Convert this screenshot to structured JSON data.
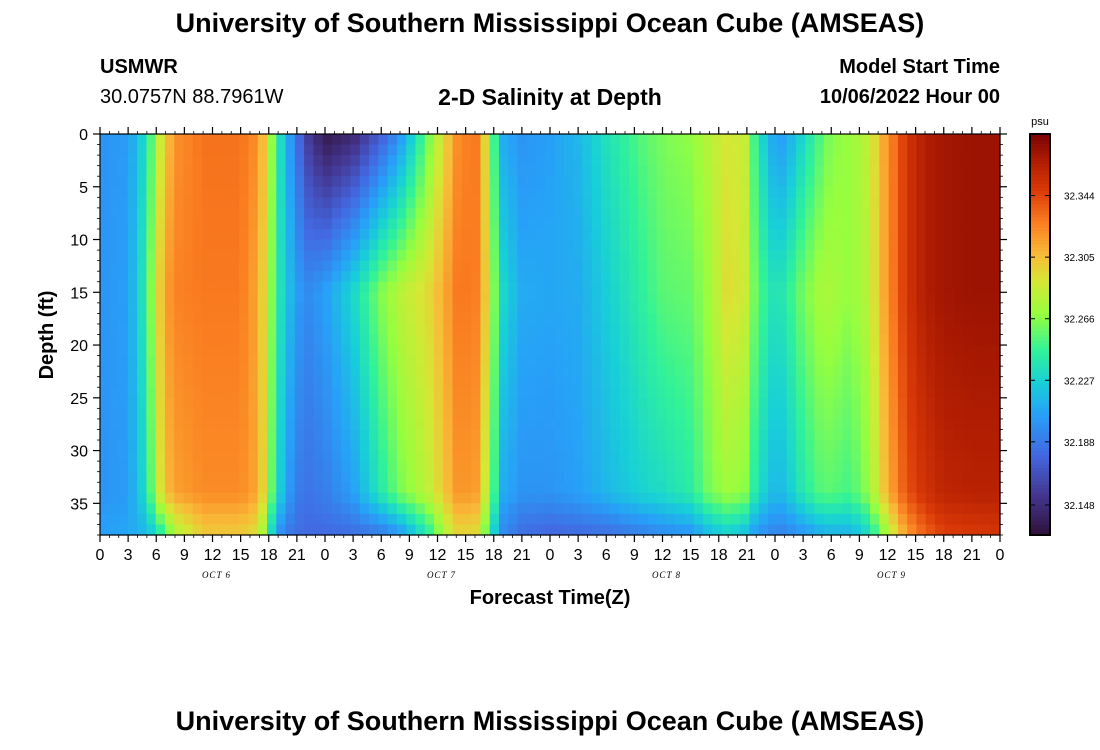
{
  "header": {
    "title": "University of Southern Mississippi Ocean Cube (AMSEAS)",
    "station_name": "USMWR",
    "station_coords": "30.0757N  88.7961W",
    "chart_title": "2-D Salinity at Depth",
    "model_start_label": "Model Start Time",
    "model_start_value": "10/06/2022 Hour 00"
  },
  "footer": {
    "title": "University of Southern Mississippi Ocean Cube (AMSEAS)"
  },
  "chart_data": {
    "type": "heatmap",
    "title": "2-D Salinity at Depth",
    "xlabel": "Forecast Time(Z)",
    "ylabel": "Depth (ft)",
    "x_unit": "hours since model start",
    "x_range": [
      0,
      96
    ],
    "y_range": [
      0,
      38
    ],
    "y_inverted": true,
    "x_tick_labels": [
      "0",
      "3",
      "6",
      "9",
      "12",
      "15",
      "18",
      "21",
      "0",
      "3",
      "6",
      "9",
      "12",
      "15",
      "18",
      "21",
      "0",
      "3",
      "6",
      "9",
      "12",
      "15",
      "18",
      "21",
      "0",
      "3",
      "6",
      "9",
      "12",
      "15",
      "18",
      "21",
      "0"
    ],
    "y_ticks": [
      0,
      5,
      10,
      15,
      20,
      25,
      30,
      35
    ],
    "date_labels": [
      {
        "label": "OCT 6",
        "hour": 12
      },
      {
        "label": "OCT 7",
        "hour": 36
      },
      {
        "label": "OCT 8",
        "hour": 60
      },
      {
        "label": "OCT 9",
        "hour": 84
      }
    ],
    "colorbar": {
      "unit": "psu",
      "range": [
        32.129,
        32.383
      ],
      "ticks": [
        32.148,
        32.188,
        32.227,
        32.266,
        32.305,
        32.344
      ]
    },
    "profile_hours": [
      0,
      3,
      5,
      6,
      7,
      8,
      11,
      15,
      17,
      18,
      19,
      20,
      21,
      22,
      24,
      27,
      30,
      32,
      35,
      37,
      38,
      40,
      41,
      42,
      43,
      45,
      48,
      51,
      54,
      58,
      60,
      63,
      65,
      67,
      69,
      70,
      72,
      73,
      75,
      77,
      78,
      80,
      82,
      84,
      86,
      88,
      90,
      93,
      96
    ],
    "profile_values": {
      "surface": [
        32.2,
        32.203,
        32.235,
        32.275,
        32.3,
        32.32,
        32.33,
        32.33,
        32.32,
        32.28,
        32.24,
        32.21,
        32.185,
        32.16,
        32.135,
        32.145,
        32.175,
        32.2,
        32.26,
        32.3,
        32.32,
        32.33,
        32.3,
        32.25,
        32.21,
        32.2,
        32.205,
        32.215,
        32.235,
        32.255,
        32.262,
        32.268,
        32.28,
        32.29,
        32.283,
        32.24,
        32.205,
        32.205,
        32.23,
        32.255,
        32.265,
        32.27,
        32.282,
        32.32,
        32.35,
        32.365,
        32.37,
        32.372,
        32.372
      ],
      "mid": [
        32.2,
        32.205,
        32.245,
        32.29,
        32.315,
        32.325,
        32.328,
        32.328,
        32.31,
        32.275,
        32.24,
        32.22,
        32.205,
        32.195,
        32.205,
        32.23,
        32.265,
        32.28,
        32.295,
        32.315,
        32.328,
        32.328,
        32.305,
        32.265,
        32.23,
        32.21,
        32.208,
        32.21,
        32.225,
        32.245,
        32.255,
        32.258,
        32.272,
        32.295,
        32.285,
        32.255,
        32.235,
        32.24,
        32.262,
        32.275,
        32.275,
        32.268,
        32.28,
        32.32,
        32.35,
        32.365,
        32.37,
        32.372,
        32.372
      ],
      "near_bottom": [
        32.2,
        32.203,
        32.235,
        32.28,
        32.305,
        32.315,
        32.322,
        32.322,
        32.312,
        32.27,
        32.23,
        32.205,
        32.19,
        32.185,
        32.19,
        32.205,
        32.24,
        32.262,
        32.282,
        32.305,
        32.318,
        32.318,
        32.29,
        32.25,
        32.21,
        32.2,
        32.2,
        32.205,
        32.215,
        32.228,
        32.232,
        32.242,
        32.262,
        32.272,
        32.265,
        32.235,
        32.215,
        32.218,
        32.24,
        32.255,
        32.255,
        32.25,
        32.268,
        32.31,
        32.34,
        32.352,
        32.36,
        32.362,
        32.362
      ],
      "bottom": [
        32.205,
        32.208,
        32.215,
        32.23,
        32.25,
        32.275,
        32.3,
        32.3,
        32.29,
        32.24,
        32.2,
        32.188,
        32.182,
        32.18,
        32.18,
        32.182,
        32.188,
        32.2,
        32.24,
        32.28,
        32.295,
        32.295,
        32.265,
        32.225,
        32.195,
        32.182,
        32.178,
        32.18,
        32.182,
        32.19,
        32.195,
        32.2,
        32.215,
        32.225,
        32.215,
        32.2,
        32.192,
        32.192,
        32.2,
        32.21,
        32.212,
        32.212,
        32.23,
        32.275,
        32.315,
        32.335,
        32.345,
        32.348,
        32.35
      ]
    }
  }
}
